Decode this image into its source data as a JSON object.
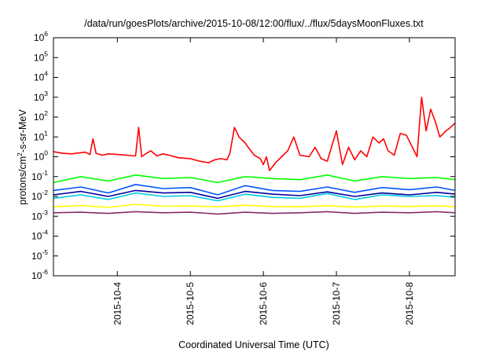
{
  "chart_data": {
    "type": "line",
    "title": "/data/run/goesPlots/archive/2015-10-08/12:00/flux/../flux/5daysMoonFluxes.txt",
    "xlabel": "Coordinated Universal Time (UTC)",
    "ylabel": "protons/cm²-s-sr-MeV",
    "ylabel_parts": {
      "base": "protons/cm",
      "sup": "2",
      "rest": "-s-sr-MeV"
    },
    "yscale": "log",
    "ylim": [
      1e-06,
      1000000.0
    ],
    "ytick_base": "10",
    "yticks": [
      {
        "exp": "6",
        "value": 1000000.0
      },
      {
        "exp": "5",
        "value": 100000.0
      },
      {
        "exp": "4",
        "value": 10000.0
      },
      {
        "exp": "3",
        "value": 1000.0
      },
      {
        "exp": "2",
        "value": 100.0
      },
      {
        "exp": "1",
        "value": 10.0
      },
      {
        "exp": "0",
        "value": 1
      },
      {
        "exp": "-1",
        "value": 0.1
      },
      {
        "exp": "-2",
        "value": 0.01
      },
      {
        "exp": "-3",
        "value": 0.001
      },
      {
        "exp": "-4",
        "value": 0.0001
      },
      {
        "exp": "-5",
        "value": 1e-05
      },
      {
        "exp": "-6",
        "value": 1e-06
      }
    ],
    "xlim": [
      "2015-10-03T03:00",
      "2015-10-08T15:00"
    ],
    "xticks": [
      "2015-10-4",
      "2015-10-5",
      "2015-10-6",
      "2015-10-7",
      "2015-10-8"
    ],
    "xtick_dates": [
      "2015-10-04T00:00",
      "2015-10-05T00:00",
      "2015-10-06T00:00",
      "2015-10-07T00:00",
      "2015-10-08T00:00"
    ],
    "grid": false,
    "series": [
      {
        "color": "#ff0000",
        "x": [
          "2015-10-03T03:00",
          "2015-10-03T06:00",
          "2015-10-03T09:00",
          "2015-10-03T12:00",
          "2015-10-03T13:30",
          "2015-10-03T15:00",
          "2015-10-03T16:00",
          "2015-10-03T17:00",
          "2015-10-03T19:00",
          "2015-10-03T21:00",
          "2015-10-04T00:00",
          "2015-10-04T03:00",
          "2015-10-04T06:00",
          "2015-10-04T07:00",
          "2015-10-04T08:00",
          "2015-10-04T09:00",
          "2015-10-04T11:00",
          "2015-10-04T13:00",
          "2015-10-04T15:00",
          "2015-10-04T17:00",
          "2015-10-04T20:00",
          "2015-10-05T00:00",
          "2015-10-05T03:00",
          "2015-10-05T06:00",
          "2015-10-05T08:00",
          "2015-10-05T10:00",
          "2015-10-05T12:00",
          "2015-10-05T13:00",
          "2015-10-05T14:30",
          "2015-10-05T16:00",
          "2015-10-05T18:00",
          "2015-10-05T19:00",
          "2015-10-05T21:00",
          "2015-10-05T23:00",
          "2015-10-06T00:00",
          "2015-10-06T01:00",
          "2015-10-06T02:00",
          "2015-10-06T04:00",
          "2015-10-06T06:00",
          "2015-10-06T08:00",
          "2015-10-06T10:00",
          "2015-10-06T12:00",
          "2015-10-06T15:00",
          "2015-10-06T17:00",
          "2015-10-06T19:00",
          "2015-10-06T21:00",
          "2015-10-07T00:00",
          "2015-10-07T02:00",
          "2015-10-07T04:00",
          "2015-10-07T06:00",
          "2015-10-07T08:00",
          "2015-10-07T10:00",
          "2015-10-07T12:00",
          "2015-10-07T14:00",
          "2015-10-07T15:30",
          "2015-10-07T17:00",
          "2015-10-07T19:00",
          "2015-10-07T21:00",
          "2015-10-07T23:00",
          "2015-10-08T01:00",
          "2015-10-08T02:30",
          "2015-10-08T04:00",
          "2015-10-08T05:30",
          "2015-10-08T07:00",
          "2015-10-08T08:30",
          "2015-10-08T10:00",
          "2015-10-08T12:00",
          "2015-10-08T13:30",
          "2015-10-08T15:00"
        ],
        "y": [
          1.8,
          1.5,
          1.4,
          1.6,
          1.7,
          1.3,
          8,
          1.5,
          1.2,
          1.4,
          1.3,
          1.2,
          1.1,
          30,
          1.0,
          1.3,
          2.0,
          1.1,
          1.4,
          1.2,
          0.9,
          0.8,
          0.6,
          0.5,
          0.7,
          0.8,
          0.7,
          1.5,
          30,
          10,
          5,
          3,
          1.2,
          0.8,
          0.4,
          1.0,
          0.2,
          0.5,
          1.0,
          2.0,
          10,
          1.2,
          1.0,
          3.0,
          0.8,
          0.6,
          20,
          0.4,
          3.0,
          0.7,
          2.0,
          1.0,
          10,
          5,
          8,
          2,
          1.2,
          15,
          12,
          3,
          1.0,
          1000,
          20,
          250,
          60,
          10,
          20,
          30,
          50
        ]
      },
      {
        "color": "#00ff00",
        "x": [
          "2015-10-03T03:00",
          "2015-10-03T12:00",
          "2015-10-03T21:00",
          "2015-10-04T06:00",
          "2015-10-04T15:00",
          "2015-10-05T00:00",
          "2015-10-05T09:00",
          "2015-10-05T18:00",
          "2015-10-06T03:00",
          "2015-10-06T12:00",
          "2015-10-06T21:00",
          "2015-10-07T06:00",
          "2015-10-07T15:00",
          "2015-10-08T00:00",
          "2015-10-08T09:00",
          "2015-10-08T15:00"
        ],
        "y": [
          0.05,
          0.1,
          0.06,
          0.12,
          0.08,
          0.09,
          0.05,
          0.1,
          0.08,
          0.07,
          0.12,
          0.06,
          0.1,
          0.08,
          0.09,
          0.07
        ]
      },
      {
        "color": "#00ccdd",
        "x": [
          "2015-10-03T03:00",
          "2015-10-03T12:00",
          "2015-10-03T21:00",
          "2015-10-04T06:00",
          "2015-10-04T15:00",
          "2015-10-05T00:00",
          "2015-10-05T09:00",
          "2015-10-05T18:00",
          "2015-10-06T03:00",
          "2015-10-06T12:00",
          "2015-10-06T21:00",
          "2015-10-07T06:00",
          "2015-10-07T15:00",
          "2015-10-08T00:00",
          "2015-10-08T09:00",
          "2015-10-08T15:00"
        ],
        "y": [
          0.008,
          0.012,
          0.007,
          0.015,
          0.01,
          0.011,
          0.006,
          0.013,
          0.009,
          0.008,
          0.014,
          0.007,
          0.012,
          0.01,
          0.011,
          0.009
        ]
      },
      {
        "color": "#0055ff",
        "x": [
          "2015-10-03T03:00",
          "2015-10-03T12:00",
          "2015-10-03T21:00",
          "2015-10-04T06:00",
          "2015-10-04T15:00",
          "2015-10-05T00:00",
          "2015-10-05T09:00",
          "2015-10-05T18:00",
          "2015-10-06T03:00",
          "2015-10-06T12:00",
          "2015-10-06T21:00",
          "2015-10-07T06:00",
          "2015-10-07T15:00",
          "2015-10-08T00:00",
          "2015-10-08T09:00",
          "2015-10-08T15:00"
        ],
        "y": [
          0.02,
          0.03,
          0.015,
          0.04,
          0.025,
          0.028,
          0.012,
          0.035,
          0.02,
          0.018,
          0.03,
          0.016,
          0.028,
          0.022,
          0.03,
          0.02
        ]
      },
      {
        "color": "#0000a0",
        "x": [
          "2015-10-03T03:00",
          "2015-10-03T12:00",
          "2015-10-03T21:00",
          "2015-10-04T06:00",
          "2015-10-04T15:00",
          "2015-10-05T00:00",
          "2015-10-05T09:00",
          "2015-10-05T18:00",
          "2015-10-06T03:00",
          "2015-10-06T12:00",
          "2015-10-06T21:00",
          "2015-10-07T06:00",
          "2015-10-07T15:00",
          "2015-10-08T00:00",
          "2015-10-08T09:00",
          "2015-10-08T15:00"
        ],
        "y": [
          0.012,
          0.018,
          0.01,
          0.02,
          0.015,
          0.016,
          0.008,
          0.018,
          0.013,
          0.011,
          0.017,
          0.01,
          0.015,
          0.012,
          0.016,
          0.013
        ]
      },
      {
        "color": "#ffff00",
        "x": [
          "2015-10-03T03:00",
          "2015-10-03T12:00",
          "2015-10-03T21:00",
          "2015-10-04T06:00",
          "2015-10-04T15:00",
          "2015-10-05T00:00",
          "2015-10-05T09:00",
          "2015-10-05T18:00",
          "2015-10-06T03:00",
          "2015-10-06T12:00",
          "2015-10-06T21:00",
          "2015-10-07T06:00",
          "2015-10-07T15:00",
          "2015-10-08T00:00",
          "2015-10-08T09:00",
          "2015-10-08T15:00"
        ],
        "y": [
          0.003,
          0.0035,
          0.0028,
          0.004,
          0.0032,
          0.0033,
          0.003,
          0.0036,
          0.0031,
          0.003,
          0.0034,
          0.0029,
          0.0033,
          0.0031,
          0.0034,
          0.003
        ]
      },
      {
        "color": "#8b2a6b",
        "x": [
          "2015-10-03T03:00",
          "2015-10-03T12:00",
          "2015-10-03T21:00",
          "2015-10-04T06:00",
          "2015-10-04T15:00",
          "2015-10-05T00:00",
          "2015-10-05T09:00",
          "2015-10-05T18:00",
          "2015-10-06T03:00",
          "2015-10-06T12:00",
          "2015-10-06T21:00",
          "2015-10-07T06:00",
          "2015-10-07T15:00",
          "2015-10-08T00:00",
          "2015-10-08T09:00",
          "2015-10-08T15:00"
        ],
        "y": [
          0.0015,
          0.0016,
          0.0014,
          0.0017,
          0.0015,
          0.0016,
          0.0013,
          0.0016,
          0.0014,
          0.0015,
          0.0017,
          0.0014,
          0.0016,
          0.0015,
          0.0017,
          0.0015
        ]
      }
    ]
  }
}
